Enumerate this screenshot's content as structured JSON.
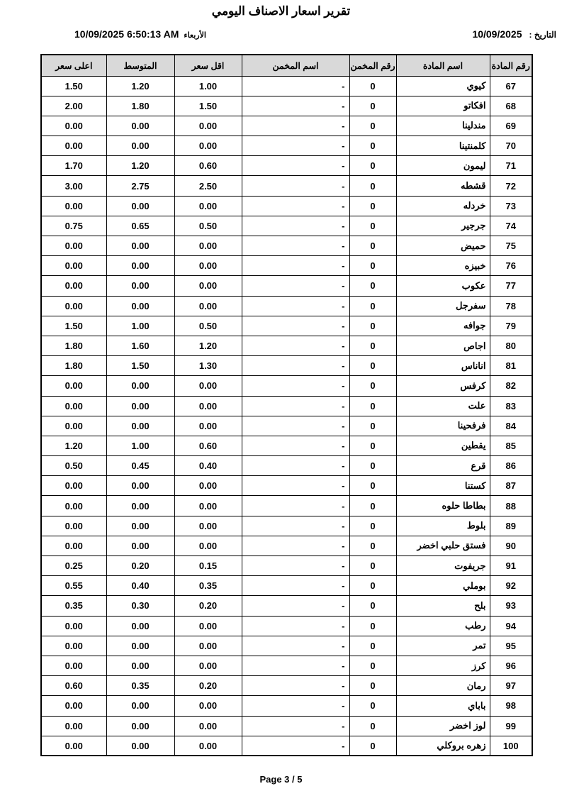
{
  "page": {
    "title": "تقرير اسعار الاصناف اليومي",
    "date_label": "التاريخ :",
    "date_value": "10/09/2025",
    "datetime": "10/09/2025  6:50:13  AM",
    "day_name": "الأربعاء",
    "footer": "Page 3 / 5"
  },
  "table": {
    "headers": {
      "item_no": "رقم المادة",
      "item_name": "اسم المادة",
      "estimator_no": "رقم المخمن",
      "estimator_name": "اسم المخمن",
      "min_price": "اقل سعر",
      "avg_price": "المتوسط",
      "max_price": "اعلى سعر"
    },
    "rows": [
      {
        "no": "67",
        "name": "كيوي",
        "est_no": "0",
        "est_name": "-",
        "min": "1.00",
        "avg": "1.20",
        "max": "1.50"
      },
      {
        "no": "68",
        "name": "افكاتو",
        "est_no": "0",
        "est_name": "-",
        "min": "1.50",
        "avg": "1.80",
        "max": "2.00"
      },
      {
        "no": "69",
        "name": "مندلينا",
        "est_no": "0",
        "est_name": "-",
        "min": "0.00",
        "avg": "0.00",
        "max": "0.00"
      },
      {
        "no": "70",
        "name": "كلمنتينا",
        "est_no": "0",
        "est_name": "-",
        "min": "0.00",
        "avg": "0.00",
        "max": "0.00"
      },
      {
        "no": "71",
        "name": "ليمون",
        "est_no": "0",
        "est_name": "-",
        "min": "0.60",
        "avg": "1.20",
        "max": "1.70"
      },
      {
        "no": "72",
        "name": "قشطه",
        "est_no": "0",
        "est_name": "-",
        "min": "2.50",
        "avg": "2.75",
        "max": "3.00"
      },
      {
        "no": "73",
        "name": "خردله",
        "est_no": "0",
        "est_name": "-",
        "min": "0.00",
        "avg": "0.00",
        "max": "0.00"
      },
      {
        "no": "74",
        "name": "جرجير",
        "est_no": "0",
        "est_name": "-",
        "min": "0.50",
        "avg": "0.65",
        "max": "0.75"
      },
      {
        "no": "75",
        "name": "حميض",
        "est_no": "0",
        "est_name": "-",
        "min": "0.00",
        "avg": "0.00",
        "max": "0.00"
      },
      {
        "no": "76",
        "name": "خبيزه",
        "est_no": "0",
        "est_name": "-",
        "min": "0.00",
        "avg": "0.00",
        "max": "0.00"
      },
      {
        "no": "77",
        "name": "عكوب",
        "est_no": "0",
        "est_name": "-",
        "min": "0.00",
        "avg": "0.00",
        "max": "0.00"
      },
      {
        "no": "78",
        "name": "سفرجل",
        "est_no": "0",
        "est_name": "-",
        "min": "0.00",
        "avg": "0.00",
        "max": "0.00"
      },
      {
        "no": "79",
        "name": "جوافه",
        "est_no": "0",
        "est_name": "-",
        "min": "0.50",
        "avg": "1.00",
        "max": "1.50"
      },
      {
        "no": "80",
        "name": "اجاص",
        "est_no": "0",
        "est_name": "-",
        "min": "1.20",
        "avg": "1.60",
        "max": "1.80"
      },
      {
        "no": "81",
        "name": "اناناس",
        "est_no": "0",
        "est_name": "-",
        "min": "1.30",
        "avg": "1.50",
        "max": "1.80"
      },
      {
        "no": "82",
        "name": "كرفس",
        "est_no": "0",
        "est_name": "-",
        "min": "0.00",
        "avg": "0.00",
        "max": "0.00"
      },
      {
        "no": "83",
        "name": "علت",
        "est_no": "0",
        "est_name": "-",
        "min": "0.00",
        "avg": "0.00",
        "max": "0.00"
      },
      {
        "no": "84",
        "name": "فرفحينا",
        "est_no": "0",
        "est_name": "-",
        "min": "0.00",
        "avg": "0.00",
        "max": "0.00"
      },
      {
        "no": "85",
        "name": "يقطين",
        "est_no": "0",
        "est_name": "-",
        "min": "0.60",
        "avg": "1.00",
        "max": "1.20"
      },
      {
        "no": "86",
        "name": "قرع",
        "est_no": "0",
        "est_name": "-",
        "min": "0.40",
        "avg": "0.45",
        "max": "0.50"
      },
      {
        "no": "87",
        "name": "كستنا",
        "est_no": "0",
        "est_name": "-",
        "min": "0.00",
        "avg": "0.00",
        "max": "0.00"
      },
      {
        "no": "88",
        "name": "بطاطا حلوه",
        "est_no": "0",
        "est_name": "-",
        "min": "0.00",
        "avg": "0.00",
        "max": "0.00"
      },
      {
        "no": "89",
        "name": "بلوط",
        "est_no": "0",
        "est_name": "-",
        "min": "0.00",
        "avg": "0.00",
        "max": "0.00"
      },
      {
        "no": "90",
        "name": "فستق حلبي اخضر",
        "est_no": "0",
        "est_name": "-",
        "min": "0.00",
        "avg": "0.00",
        "max": "0.00"
      },
      {
        "no": "91",
        "name": "جريفوت",
        "est_no": "0",
        "est_name": "-",
        "min": "0.15",
        "avg": "0.20",
        "max": "0.25"
      },
      {
        "no": "92",
        "name": "بوملي",
        "est_no": "0",
        "est_name": "-",
        "min": "0.35",
        "avg": "0.40",
        "max": "0.55"
      },
      {
        "no": "93",
        "name": "بلح",
        "est_no": "0",
        "est_name": "-",
        "min": "0.20",
        "avg": "0.30",
        "max": "0.35"
      },
      {
        "no": "94",
        "name": "رطب",
        "est_no": "0",
        "est_name": "-",
        "min": "0.00",
        "avg": "0.00",
        "max": "0.00"
      },
      {
        "no": "95",
        "name": "تمر",
        "est_no": "0",
        "est_name": "-",
        "min": "0.00",
        "avg": "0.00",
        "max": "0.00"
      },
      {
        "no": "96",
        "name": "كرز",
        "est_no": "0",
        "est_name": "-",
        "min": "0.00",
        "avg": "0.00",
        "max": "0.00"
      },
      {
        "no": "97",
        "name": "رمان",
        "est_no": "0",
        "est_name": "-",
        "min": "0.20",
        "avg": "0.35",
        "max": "0.60"
      },
      {
        "no": "98",
        "name": "باباي",
        "est_no": "0",
        "est_name": "-",
        "min": "0.00",
        "avg": "0.00",
        "max": "0.00"
      },
      {
        "no": "99",
        "name": "لوز اخضر",
        "est_no": "0",
        "est_name": "-",
        "min": "0.00",
        "avg": "0.00",
        "max": "0.00"
      },
      {
        "no": "100",
        "name": "زهره بروكلي",
        "est_no": "0",
        "est_name": "-",
        "min": "0.00",
        "avg": "0.00",
        "max": "0.00"
      }
    ]
  },
  "colors": {
    "header_bg": "#d9d9d9",
    "border": "#000000",
    "text": "#000000",
    "page_bg": "#ffffff"
  }
}
